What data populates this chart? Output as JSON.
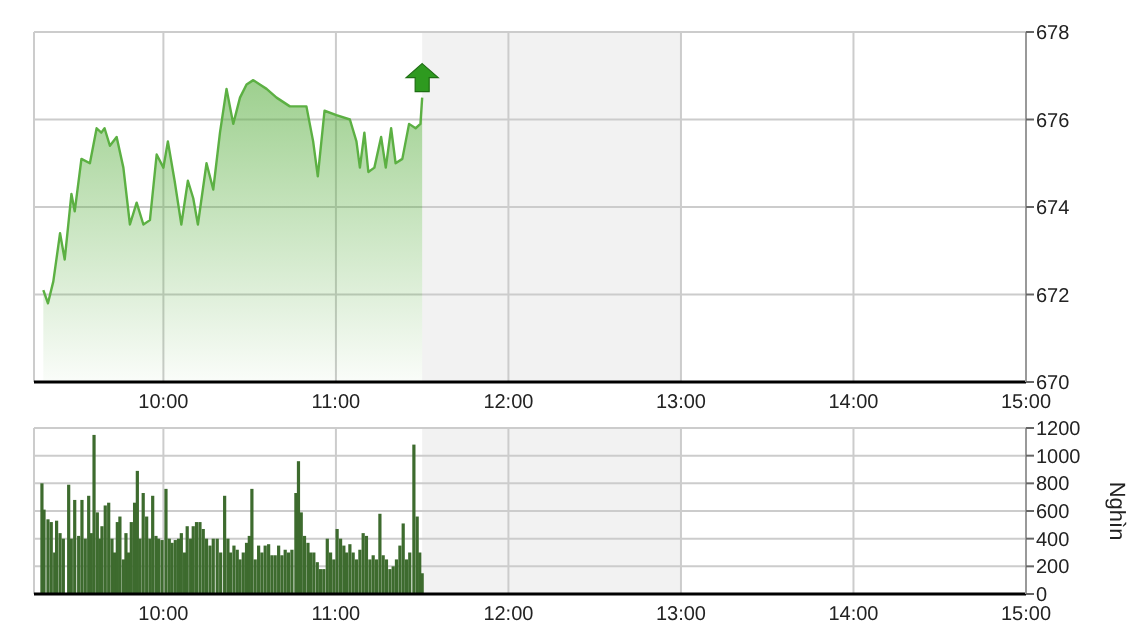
{
  "chart_data": [
    {
      "type": "area",
      "color": "#5cb043",
      "grid": true,
      "xlim": [
        9.25,
        15
      ],
      "ylim": [
        670,
        678
      ],
      "xticks": [
        {
          "value": 10,
          "label": "10:00"
        },
        {
          "value": 11,
          "label": "11:00"
        },
        {
          "value": 12,
          "label": "12:00"
        },
        {
          "value": 13,
          "label": "13:00"
        },
        {
          "value": 14,
          "label": "14:00"
        },
        {
          "value": 15,
          "label": "15:00"
        }
      ],
      "yticks": [
        670,
        672,
        674,
        676,
        678
      ],
      "bands": [
        {
          "axis": "x",
          "from": 11.5,
          "to": 13,
          "color": "#f2f2f2"
        }
      ],
      "x": [
        9.304,
        9.331,
        9.362,
        9.401,
        9.428,
        9.467,
        9.486,
        9.525,
        9.574,
        9.613,
        9.64,
        9.659,
        9.69,
        9.729,
        9.768,
        9.806,
        9.845,
        9.884,
        9.922,
        9.961,
        10.0,
        10.026,
        10.065,
        10.104,
        10.142,
        10.173,
        10.2,
        10.25,
        10.289,
        10.328,
        10.366,
        10.405,
        10.444,
        10.482,
        10.521,
        10.559,
        10.598,
        10.656,
        10.733,
        10.829,
        10.868,
        10.895,
        10.934,
        11.003,
        11.081,
        11.119,
        11.139,
        11.165,
        11.188,
        11.223,
        11.262,
        11.289,
        11.32,
        11.346,
        11.385,
        11.424,
        11.462,
        11.49,
        11.5
      ],
      "values": [
        672.1,
        671.8,
        672.3,
        673.4,
        672.8,
        674.3,
        673.9,
        675.1,
        675.0,
        675.8,
        675.7,
        675.8,
        675.4,
        675.6,
        674.9,
        673.6,
        674.1,
        673.6,
        673.7,
        675.2,
        674.9,
        675.5,
        674.6,
        673.6,
        674.6,
        674.2,
        673.6,
        675.0,
        674.4,
        675.7,
        676.7,
        675.9,
        676.5,
        676.8,
        676.9,
        676.8,
        676.7,
        676.5,
        676.3,
        676.3,
        675.5,
        674.7,
        676.2,
        676.1,
        676.0,
        675.5,
        674.9,
        675.7,
        674.8,
        674.9,
        675.6,
        674.9,
        675.8,
        675.0,
        675.1,
        675.9,
        675.8,
        675.9,
        676.5
      ]
    },
    {
      "type": "bar",
      "color": "#3d6b2e",
      "grid": true,
      "xlim": [
        9.25,
        15
      ],
      "ylim": [
        0,
        1200
      ],
      "ylabel": "Nghìn",
      "xticks": [
        {
          "value": 10,
          "label": "10:00"
        },
        {
          "value": 11,
          "label": "11:00"
        },
        {
          "value": 12,
          "label": "12:00"
        },
        {
          "value": 13,
          "label": "13:00"
        },
        {
          "value": 14,
          "label": "14:00"
        },
        {
          "value": 15,
          "label": "15:00"
        }
      ],
      "yticks": [
        0,
        200,
        400,
        600,
        800,
        1000,
        1200
      ],
      "bands": [
        {
          "axis": "x",
          "from": 11.5,
          "to": 13,
          "color": "#f2f2f2"
        }
      ],
      "x": [
        9.296,
        9.308,
        9.331,
        9.35,
        9.37,
        9.381,
        9.401,
        9.42,
        9.451,
        9.466,
        9.486,
        9.509,
        9.528,
        9.547,
        9.567,
        9.582,
        9.598,
        9.617,
        9.632,
        9.644,
        9.663,
        9.683,
        9.702,
        9.717,
        9.733,
        9.748,
        9.768,
        9.783,
        9.798,
        9.814,
        9.833,
        9.849,
        9.864,
        9.883,
        9.903,
        9.922,
        9.938,
        9.957,
        9.972,
        9.992,
        10.015,
        10.034,
        10.05,
        10.069,
        10.088,
        10.104,
        10.123,
        10.138,
        10.158,
        10.173,
        10.192,
        10.212,
        10.231,
        10.25,
        10.27,
        10.289,
        10.312,
        10.332,
        10.355,
        10.374,
        10.389,
        10.409,
        10.428,
        10.444,
        10.463,
        10.482,
        10.498,
        10.513,
        10.532,
        10.552,
        10.571,
        10.59,
        10.61,
        10.629,
        10.648,
        10.668,
        10.687,
        10.706,
        10.725,
        10.745,
        10.768,
        10.783,
        10.799,
        10.818,
        10.838,
        10.853,
        10.872,
        10.892,
        10.911,
        10.93,
        10.95,
        10.969,
        10.988,
        11.007,
        11.027,
        11.046,
        11.062,
        11.081,
        11.1,
        11.119,
        11.139,
        11.158,
        11.177,
        11.197,
        11.216,
        11.235,
        11.255,
        11.274,
        11.293,
        11.313,
        11.332,
        11.351,
        11.371,
        11.39,
        11.409,
        11.428,
        11.452,
        11.471,
        11.486,
        11.5
      ],
      "values": [
        800,
        610,
        540,
        520,
        300,
        530,
        440,
        400,
        790,
        400,
        680,
        420,
        680,
        400,
        710,
        440,
        1150,
        590,
        400,
        490,
        640,
        660,
        400,
        300,
        520,
        560,
        250,
        440,
        300,
        520,
        660,
        890,
        400,
        730,
        560,
        400,
        710,
        420,
        400,
        390,
        760,
        400,
        370,
        390,
        400,
        440,
        300,
        490,
        400,
        490,
        520,
        520,
        470,
        400,
        350,
        400,
        400,
        300,
        710,
        400,
        300,
        350,
        320,
        250,
        300,
        370,
        420,
        760,
        250,
        350,
        300,
        350,
        360,
        280,
        280,
        350,
        280,
        320,
        300,
        320,
        730,
        960,
        590,
        420,
        370,
        300,
        300,
        230,
        180,
        180,
        400,
        300,
        250,
        470,
        400,
        350,
        300,
        360,
        300,
        250,
        320,
        440,
        420,
        250,
        280,
        250,
        580,
        280,
        250,
        180,
        200,
        250,
        350,
        510,
        250,
        300,
        1080,
        560,
        300,
        150
      ]
    }
  ]
}
